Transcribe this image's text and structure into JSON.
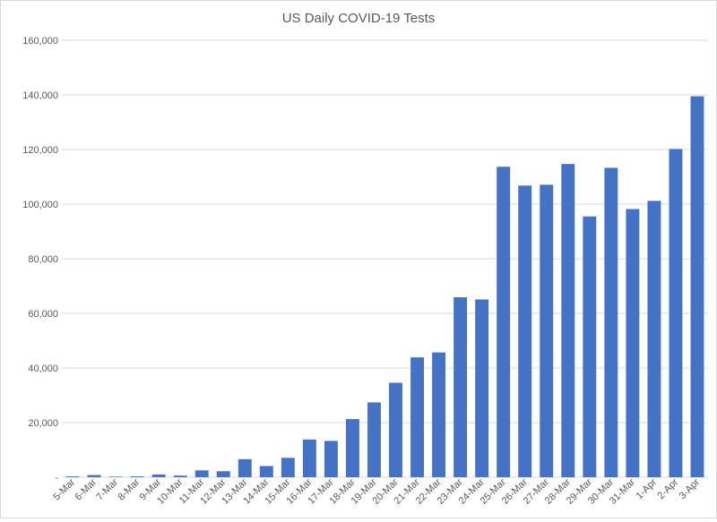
{
  "chart_data": {
    "type": "bar",
    "title": "US Daily COVID-19 Tests",
    "xlabel": "",
    "ylabel": "",
    "ylim": [
      0,
      160000
    ],
    "yticks": [
      0,
      20000,
      40000,
      60000,
      80000,
      100000,
      120000,
      140000,
      160000
    ],
    "ytick_labels": [
      "-",
      "20,000",
      "40,000",
      "60,000",
      "80,000",
      "100,000",
      "120,000",
      "140,000",
      "160,000"
    ],
    "categories": [
      "5-Mar",
      "6-Mar",
      "7-Mar",
      "8-Mar",
      "9-Mar",
      "10-Mar",
      "11-Mar",
      "12-Mar",
      "13-Mar",
      "14-Mar",
      "15-Mar",
      "16-Mar",
      "17-Mar",
      "18-Mar",
      "19-Mar",
      "20-Mar",
      "21-Mar",
      "22-Mar",
      "23-Mar",
      "24-Mar",
      "25-Mar",
      "26-Mar",
      "27-Mar",
      "28-Mar",
      "29-Mar",
      "30-Mar",
      "31-Mar",
      "1-Apr",
      "2-Apr",
      "3-Apr"
    ],
    "values": [
      300,
      800,
      200,
      300,
      1000,
      600,
      2500,
      2200,
      6600,
      4100,
      7100,
      13800,
      13300,
      21300,
      27400,
      34600,
      43900,
      45700,
      65900,
      65100,
      113700,
      106800,
      107100,
      114700,
      95500,
      113300,
      98200,
      101200,
      120200,
      139500
    ],
    "grid": true,
    "bar_color": "#4472C4"
  }
}
